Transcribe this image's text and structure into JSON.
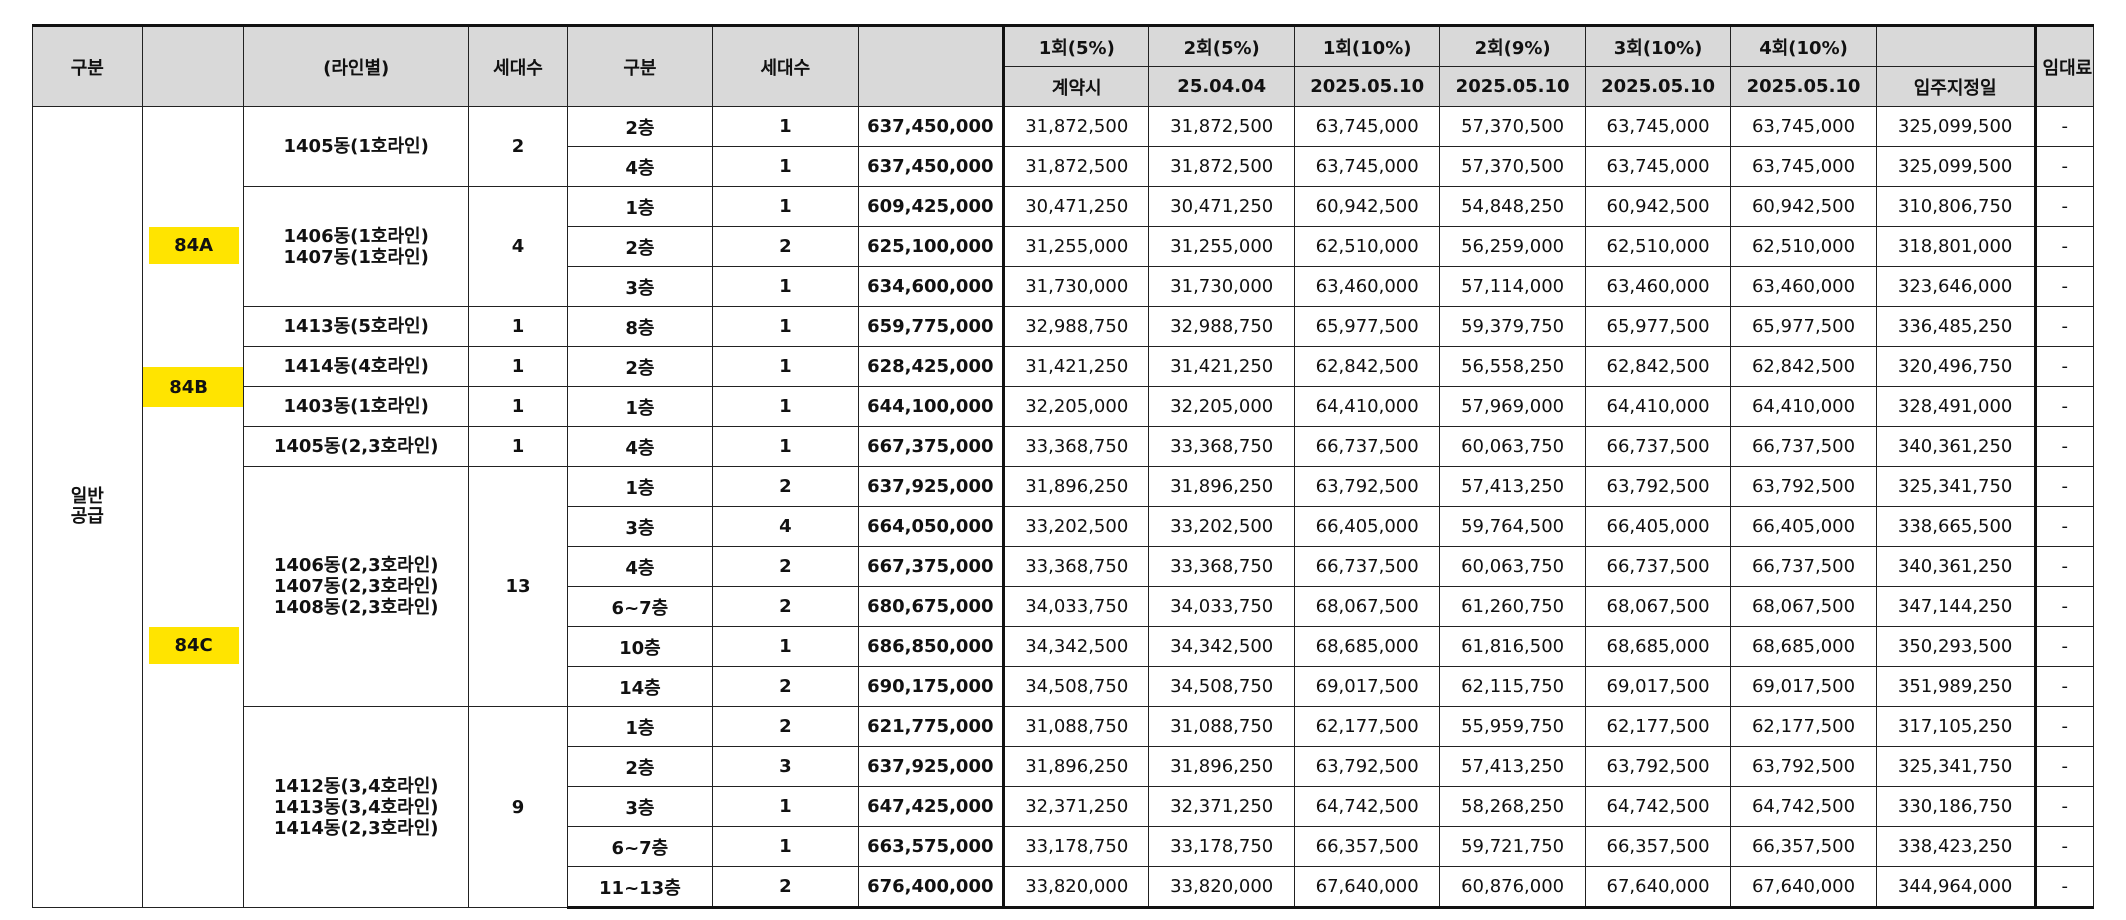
{
  "header": {
    "gubun": "구분",
    "line": "(라인별)",
    "households": "세대수",
    "gubun2": "구분",
    "households2": "세대수",
    "pay_labels": [
      "1회(5%)",
      "2회(5%)",
      "1회(10%)",
      "2회(9%)",
      "3회(10%)",
      "4회(10%)"
    ],
    "pay_dates": [
      "계약시",
      "25.04.04",
      "2025.05.10",
      "2025.05.10",
      "2025.05.10",
      "2025.05.10"
    ],
    "balance": "입주지정일",
    "rent": "임대료"
  },
  "category": {
    "line1": "일반",
    "line2": "공급"
  },
  "types": [
    "84A",
    "84B",
    "84C"
  ],
  "groups": [
    {
      "lines": [
        "1405동(1호라인)"
      ],
      "count": "2",
      "rows": [
        {
          "floor": "2층",
          "hh": "1",
          "price": "637,450,000",
          "p": [
            "31,872,500",
            "31,872,500",
            "63,745,000",
            "57,370,500",
            "63,745,000",
            "63,745,000"
          ],
          "bal": "325,099,500",
          "rent": "-"
        },
        {
          "floor": "4층",
          "hh": "1",
          "price": "637,450,000",
          "p": [
            "31,872,500",
            "31,872,500",
            "63,745,000",
            "57,370,500",
            "63,745,000",
            "63,745,000"
          ],
          "bal": "325,099,500",
          "rent": "-"
        }
      ]
    },
    {
      "lines": [
        "1406동(1호라인)",
        "1407동(1호라인)"
      ],
      "count": "4",
      "rows": [
        {
          "floor": "1층",
          "hh": "1",
          "price": "609,425,000",
          "p": [
            "30,471,250",
            "30,471,250",
            "60,942,500",
            "54,848,250",
            "60,942,500",
            "60,942,500"
          ],
          "bal": "310,806,750",
          "rent": "-"
        },
        {
          "floor": "2층",
          "hh": "2",
          "price": "625,100,000",
          "p": [
            "31,255,000",
            "31,255,000",
            "62,510,000",
            "56,259,000",
            "62,510,000",
            "62,510,000"
          ],
          "bal": "318,801,000",
          "rent": "-"
        },
        {
          "floor": "3층",
          "hh": "1",
          "price": "634,600,000",
          "p": [
            "31,730,000",
            "31,730,000",
            "63,460,000",
            "57,114,000",
            "63,460,000",
            "63,460,000"
          ],
          "bal": "323,646,000",
          "rent": "-"
        }
      ]
    },
    {
      "lines": [
        "1413동(5호라인)"
      ],
      "count": "1",
      "rows": [
        {
          "floor": "8층",
          "hh": "1",
          "price": "659,775,000",
          "p": [
            "32,988,750",
            "32,988,750",
            "65,977,500",
            "59,379,750",
            "65,977,500",
            "65,977,500"
          ],
          "bal": "336,485,250",
          "rent": "-"
        }
      ]
    },
    {
      "lines": [
        "1414동(4호라인)"
      ],
      "count": "1",
      "rows": [
        {
          "floor": "2층",
          "hh": "1",
          "price": "628,425,000",
          "p": [
            "31,421,250",
            "31,421,250",
            "62,842,500",
            "56,558,250",
            "62,842,500",
            "62,842,500"
          ],
          "bal": "320,496,750",
          "rent": "-"
        }
      ]
    },
    {
      "lines": [
        "1403동(1호라인)"
      ],
      "count": "1",
      "rows": [
        {
          "floor": "1층",
          "hh": "1",
          "price": "644,100,000",
          "p": [
            "32,205,000",
            "32,205,000",
            "64,410,000",
            "57,969,000",
            "64,410,000",
            "64,410,000"
          ],
          "bal": "328,491,000",
          "rent": "-"
        }
      ]
    },
    {
      "lines": [
        "1405동(2,3호라인)"
      ],
      "count": "1",
      "rows": [
        {
          "floor": "4층",
          "hh": "1",
          "price": "667,375,000",
          "p": [
            "33,368,750",
            "33,368,750",
            "66,737,500",
            "60,063,750",
            "66,737,500",
            "66,737,500"
          ],
          "bal": "340,361,250",
          "rent": "-"
        }
      ]
    },
    {
      "lines": [
        "1406동(2,3호라인)",
        "1407동(2,3호라인)",
        "1408동(2,3호라인)"
      ],
      "count": "13",
      "rows": [
        {
          "floor": "1층",
          "hh": "2",
          "price": "637,925,000",
          "p": [
            "31,896,250",
            "31,896,250",
            "63,792,500",
            "57,413,250",
            "63,792,500",
            "63,792,500"
          ],
          "bal": "325,341,750",
          "rent": "-"
        },
        {
          "floor": "3층",
          "hh": "4",
          "price": "664,050,000",
          "p": [
            "33,202,500",
            "33,202,500",
            "66,405,000",
            "59,764,500",
            "66,405,000",
            "66,405,000"
          ],
          "bal": "338,665,500",
          "rent": "-"
        },
        {
          "floor": "4층",
          "hh": "2",
          "price": "667,375,000",
          "p": [
            "33,368,750",
            "33,368,750",
            "66,737,500",
            "60,063,750",
            "66,737,500",
            "66,737,500"
          ],
          "bal": "340,361,250",
          "rent": "-"
        },
        {
          "floor": "6~7층",
          "hh": "2",
          "price": "680,675,000",
          "p": [
            "34,033,750",
            "34,033,750",
            "68,067,500",
            "61,260,750",
            "68,067,500",
            "68,067,500"
          ],
          "bal": "347,144,250",
          "rent": "-"
        },
        {
          "floor": "10층",
          "hh": "1",
          "price": "686,850,000",
          "p": [
            "34,342,500",
            "34,342,500",
            "68,685,000",
            "61,816,500",
            "68,685,000",
            "68,685,000"
          ],
          "bal": "350,293,500",
          "rent": "-"
        },
        {
          "floor": "14층",
          "hh": "2",
          "price": "690,175,000",
          "p": [
            "34,508,750",
            "34,508,750",
            "69,017,500",
            "62,115,750",
            "69,017,500",
            "69,017,500"
          ],
          "bal": "351,989,250",
          "rent": "-"
        }
      ]
    },
    {
      "lines": [
        "1412동(3,4호라인)",
        "1413동(3,4호라인)",
        "1414동(2,3호라인)"
      ],
      "count": "9",
      "rows": [
        {
          "floor": "1층",
          "hh": "2",
          "price": "621,775,000",
          "p": [
            "31,088,750",
            "31,088,750",
            "62,177,500",
            "55,959,750",
            "62,177,500",
            "62,177,500"
          ],
          "bal": "317,105,250",
          "rent": "-"
        },
        {
          "floor": "2층",
          "hh": "3",
          "price": "637,925,000",
          "p": [
            "31,896,250",
            "31,896,250",
            "63,792,500",
            "57,413,250",
            "63,792,500",
            "63,792,500"
          ],
          "bal": "325,341,750",
          "rent": "-"
        },
        {
          "floor": "3층",
          "hh": "1",
          "price": "647,425,000",
          "p": [
            "32,371,250",
            "32,371,250",
            "64,742,500",
            "58,268,250",
            "64,742,500",
            "64,742,500"
          ],
          "bal": "330,186,750",
          "rent": "-"
        },
        {
          "floor": "6~7층",
          "hh": "1",
          "price": "663,575,000",
          "p": [
            "33,178,750",
            "33,178,750",
            "66,357,500",
            "59,721,750",
            "66,357,500",
            "66,357,500"
          ],
          "bal": "338,423,250",
          "rent": "-"
        },
        {
          "floor": "11~13층",
          "hh": "2",
          "price": "676,400,000",
          "p": [
            "33,820,000",
            "33,820,000",
            "67,640,000",
            "60,876,000",
            "67,640,000",
            "67,640,000"
          ],
          "bal": "344,964,000",
          "rent": "-"
        }
      ]
    }
  ]
}
